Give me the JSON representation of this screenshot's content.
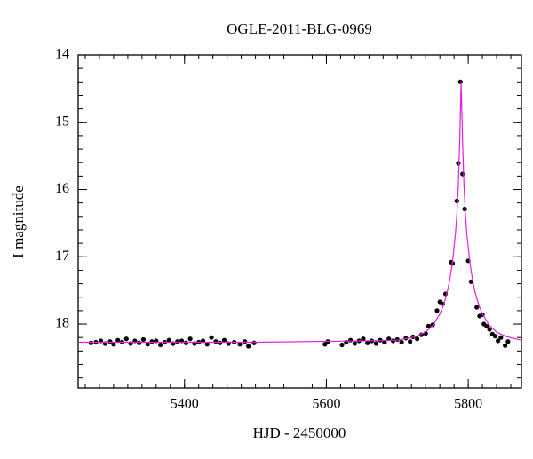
{
  "chart_data": {
    "type": "scatter",
    "title": "OGLE-2011-BLG-0969",
    "xlabel": "HJD - 2450000",
    "ylabel": "I magnitude",
    "xlim": [
      5250,
      5875
    ],
    "ylim": [
      14,
      18.95
    ],
    "yinvert": true,
    "xticks": [
      5400,
      5600,
      5800
    ],
    "yticks": [
      14,
      15,
      16,
      17,
      18
    ],
    "xminor": 20,
    "yminor": 0.2,
    "series": [
      {
        "type": "scatter",
        "color": "#000000",
        "error": 0.03,
        "x": [
          5268,
          5275,
          5282,
          5288,
          5295,
          5300,
          5306,
          5312,
          5318,
          5324,
          5330,
          5336,
          5342,
          5348,
          5354,
          5360,
          5366,
          5372,
          5378,
          5384,
          5390,
          5396,
          5402,
          5408,
          5414,
          5420,
          5426,
          5432,
          5438,
          5444,
          5450,
          5456,
          5462,
          5470,
          5478,
          5485,
          5490,
          5498,
          5598,
          5602,
          5622,
          5628,
          5634,
          5640,
          5646,
          5652,
          5658,
          5664,
          5670,
          5676,
          5682,
          5688,
          5694,
          5700,
          5706,
          5712,
          5718,
          5722,
          5728,
          5734,
          5740,
          5744,
          5750,
          5756,
          5760,
          5764,
          5768,
          5776,
          5778,
          5784,
          5786,
          5789,
          5792,
          5795,
          5800,
          5804,
          5812,
          5816,
          5820,
          5822,
          5826,
          5830,
          5834,
          5838,
          5842,
          5846,
          5852,
          5856
        ],
        "values": [
          18.28,
          18.27,
          18.25,
          18.29,
          18.26,
          18.3,
          18.24,
          18.27,
          18.22,
          18.29,
          18.25,
          18.28,
          18.23,
          18.3,
          18.26,
          18.25,
          18.31,
          18.27,
          18.24,
          18.29,
          18.26,
          18.25,
          18.28,
          18.22,
          18.29,
          18.27,
          18.25,
          18.3,
          18.2,
          18.26,
          18.28,
          18.24,
          18.29,
          18.27,
          18.3,
          18.26,
          18.33,
          18.28,
          18.3,
          18.26,
          18.31,
          18.27,
          18.24,
          18.29,
          18.25,
          18.22,
          18.28,
          18.25,
          18.29,
          18.24,
          18.27,
          18.22,
          18.25,
          18.23,
          18.27,
          18.21,
          18.26,
          18.19,
          18.22,
          18.16,
          18.14,
          18.03,
          18.01,
          17.8,
          17.67,
          17.7,
          17.55,
          17.08,
          17.1,
          16.17,
          15.61,
          14.4,
          15.77,
          16.29,
          17.06,
          17.37,
          17.75,
          17.88,
          17.86,
          18.0,
          18.03,
          18.08,
          18.15,
          18.18,
          18.25,
          18.2,
          18.32,
          18.26
        ]
      },
      {
        "type": "line",
        "color": "#e020e0",
        "x": [
          5250,
          5500,
          5650,
          5700,
          5725,
          5740,
          5750,
          5760,
          5765,
          5770,
          5774,
          5778,
          5782,
          5784,
          5786,
          5788,
          5790,
          5792,
          5794,
          5796,
          5798,
          5802,
          5806,
          5810,
          5815,
          5820,
          5830,
          5840,
          5855,
          5875
        ],
        "values": [
          18.27,
          18.27,
          18.25,
          18.24,
          18.19,
          18.12,
          18.02,
          17.85,
          17.72,
          17.54,
          17.34,
          17.06,
          16.65,
          16.36,
          15.94,
          15.28,
          14.4,
          15.28,
          15.94,
          16.36,
          16.65,
          17.06,
          17.34,
          17.54,
          17.72,
          17.85,
          18.02,
          18.12,
          18.19,
          18.24
        ]
      }
    ]
  }
}
